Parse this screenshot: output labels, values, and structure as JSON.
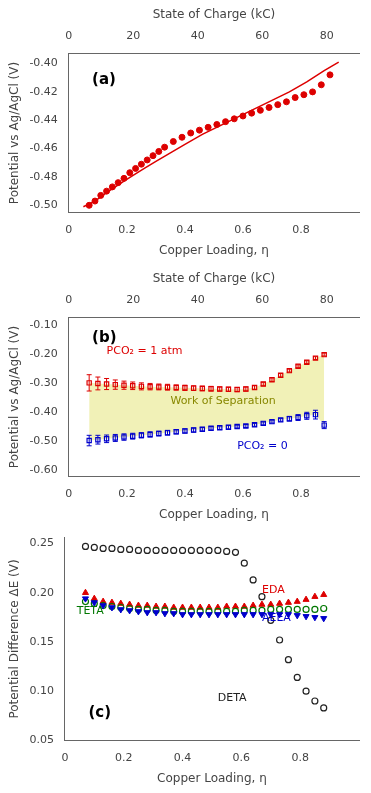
{
  "chart_data": [
    {
      "type": "scatter",
      "xlabel": "Copper Loading, η",
      "ylabel": "Potential vs Ag/AgCl (V)",
      "x2label": "State of Charge (kC)",
      "annotations": [
        {
          "text": "(a)"
        }
      ],
      "xlim": [
        0,
        1.0
      ],
      "xticks": [
        0,
        0.2,
        0.4,
        0.6,
        0.8
      ],
      "ylim": [
        -0.505,
        -0.393
      ],
      "yticks": [
        {
          "value": -0.5,
          "label": "-0.50"
        },
        -0.48,
        -0.46,
        -0.44,
        -0.42,
        {
          "value": -0.4,
          "label": "-0.40"
        }
      ],
      "x2lim": [
        0,
        90
      ],
      "x2ticks": [
        0,
        20,
        40,
        60,
        80
      ],
      "grid": false,
      "series": [
        {
          "type": "line",
          "color": "#dd0000",
          "x": [
            0.05,
            0.07,
            0.09,
            0.11,
            0.13,
            0.16,
            0.19,
            0.22,
            0.26,
            0.3,
            0.35,
            0.4,
            0.46,
            0.52,
            0.58,
            0.64,
            0.7,
            0.76,
            0.82,
            0.88,
            0.93
          ],
          "values": [
            -0.501,
            -0.499,
            -0.497,
            -0.494,
            -0.491,
            -0.487,
            -0.483,
            -0.479,
            -0.474,
            -0.469,
            -0.463,
            -0.457,
            -0.45,
            -0.444,
            -0.438,
            -0.432,
            -0.426,
            -0.42,
            -0.413,
            -0.405,
            -0.399
          ]
        },
        {
          "type": "scatter",
          "color": "#dd0000",
          "marker": "circle",
          "x": [
            0.07,
            0.09,
            0.11,
            0.13,
            0.15,
            0.17,
            0.19,
            0.21,
            0.23,
            0.25,
            0.27,
            0.29,
            0.31,
            0.33,
            0.36,
            0.39,
            0.42,
            0.45,
            0.48,
            0.51,
            0.54,
            0.57,
            0.6,
            0.63,
            0.66,
            0.69,
            0.72,
            0.75,
            0.78,
            0.81,
            0.84,
            0.87,
            0.9
          ],
          "values": [
            -0.5,
            -0.497,
            -0.493,
            -0.49,
            -0.487,
            -0.484,
            -0.481,
            -0.477,
            -0.474,
            -0.471,
            -0.468,
            -0.465,
            -0.462,
            -0.459,
            -0.455,
            -0.452,
            -0.449,
            -0.447,
            -0.445,
            -0.443,
            -0.441,
            -0.439,
            -0.437,
            -0.435,
            -0.433,
            -0.431,
            -0.429,
            -0.427,
            -0.424,
            -0.422,
            -0.42,
            -0.415,
            -0.408
          ]
        }
      ]
    },
    {
      "type": "scatter",
      "xlabel": "Copper Loading, η",
      "ylabel": "Potential vs Ag/AgCl (V)",
      "x2label": "State of Charge (kC)",
      "annotations": [
        {
          "text": "(b)"
        },
        {
          "text": "PCO₂ = 1 atm",
          "color": "#dd0000"
        },
        {
          "text": "Work of Separation",
          "color": "#888800"
        },
        {
          "text": "PCO₂ = 0",
          "color": "#0000cc"
        }
      ],
      "xlim": [
        0,
        1.0
      ],
      "xticks": [
        0,
        0.2,
        0.4,
        0.6,
        0.8
      ],
      "ylim": [
        -0.62,
        -0.075
      ],
      "yticks": [
        {
          "value": -0.6,
          "label": "-0.60"
        },
        {
          "value": -0.5,
          "label": "-0.50"
        },
        {
          "value": -0.4,
          "label": "-0.40"
        },
        {
          "value": -0.3,
          "label": "-0.30"
        },
        {
          "value": -0.2,
          "label": "-0.20"
        },
        {
          "value": -0.1,
          "label": "-0.10"
        }
      ],
      "x2lim": [
        0,
        90
      ],
      "x2ticks": [
        0,
        20,
        40,
        60,
        80
      ],
      "grid": false,
      "series": [
        {
          "type": "band",
          "color": "#eeeeaa",
          "x": [
            0.07,
            0.1,
            0.13,
            0.16,
            0.19,
            0.22,
            0.25,
            0.28,
            0.31,
            0.34,
            0.37,
            0.4,
            0.43,
            0.46,
            0.49,
            0.52,
            0.55,
            0.58,
            0.61,
            0.64,
            0.67,
            0.7,
            0.73,
            0.76,
            0.79,
            0.82,
            0.85,
            0.88
          ],
          "upper": [
            -0.299,
            -0.301,
            -0.303,
            -0.305,
            -0.307,
            -0.309,
            -0.311,
            -0.312,
            -0.313,
            -0.314,
            -0.315,
            -0.316,
            -0.317,
            -0.318,
            -0.319,
            -0.32,
            -0.321,
            -0.322,
            -0.32,
            -0.315,
            -0.303,
            -0.288,
            -0.273,
            -0.257,
            -0.242,
            -0.228,
            -0.214,
            -0.202
          ],
          "lower": [
            -0.497,
            -0.494,
            -0.491,
            -0.488,
            -0.485,
            -0.482,
            -0.479,
            -0.476,
            -0.473,
            -0.47,
            -0.467,
            -0.464,
            -0.461,
            -0.458,
            -0.455,
            -0.453,
            -0.451,
            -0.449,
            -0.447,
            -0.443,
            -0.438,
            -0.432,
            -0.426,
            -0.422,
            -0.418,
            -0.412,
            -0.408,
            -0.444
          ]
        },
        {
          "type": "scatter",
          "color": "#dd0000",
          "marker": "square_open",
          "x": [
            0.07,
            0.1,
            0.13,
            0.16,
            0.19,
            0.22,
            0.25,
            0.28,
            0.31,
            0.34,
            0.37,
            0.4,
            0.43,
            0.46,
            0.49,
            0.52,
            0.55,
            0.58,
            0.61,
            0.64,
            0.67,
            0.7,
            0.73,
            0.76,
            0.79,
            0.82,
            0.85,
            0.88
          ],
          "values": [
            -0.299,
            -0.301,
            -0.303,
            -0.305,
            -0.307,
            -0.309,
            -0.311,
            -0.312,
            -0.313,
            -0.314,
            -0.315,
            -0.316,
            -0.317,
            -0.318,
            -0.319,
            -0.32,
            -0.321,
            -0.322,
            -0.32,
            -0.315,
            -0.303,
            -0.288,
            -0.273,
            -0.257,
            -0.242,
            -0.228,
            -0.214,
            -0.202
          ],
          "error": [
            0.028,
            0.022,
            0.019,
            0.016,
            0.014,
            0.013,
            0.012,
            0.011,
            0.01,
            0.01,
            0.009,
            0.009,
            0.008,
            0.008,
            0.008,
            0.007,
            0.007,
            0.007,
            0.007,
            0.006,
            0.006,
            0.006,
            0.006,
            0.005,
            0.005,
            0.005,
            0.005,
            0.005
          ]
        },
        {
          "type": "scatter",
          "color": "#0000cc",
          "marker": "square_open",
          "x": [
            0.07,
            0.1,
            0.13,
            0.16,
            0.19,
            0.22,
            0.25,
            0.28,
            0.31,
            0.34,
            0.37,
            0.4,
            0.43,
            0.46,
            0.49,
            0.52,
            0.55,
            0.58,
            0.61,
            0.64,
            0.67,
            0.7,
            0.73,
            0.76,
            0.79,
            0.82,
            0.85,
            0.88
          ],
          "values": [
            -0.497,
            -0.494,
            -0.491,
            -0.488,
            -0.485,
            -0.482,
            -0.479,
            -0.476,
            -0.473,
            -0.47,
            -0.467,
            -0.464,
            -0.461,
            -0.458,
            -0.455,
            -0.453,
            -0.451,
            -0.449,
            -0.447,
            -0.443,
            -0.438,
            -0.432,
            -0.426,
            -0.422,
            -0.418,
            -0.412,
            -0.408,
            -0.444
          ],
          "error": [
            0.018,
            0.015,
            0.013,
            0.012,
            0.011,
            0.01,
            0.009,
            0.009,
            0.008,
            0.008,
            0.007,
            0.007,
            0.007,
            0.006,
            0.006,
            0.006,
            0.006,
            0.005,
            0.005,
            0.005,
            0.005,
            0.005,
            0.005,
            0.008,
            0.01,
            0.012,
            0.015,
            0.012
          ]
        }
      ]
    },
    {
      "type": "scatter",
      "xlabel": "Copper Loading, η",
      "ylabel": "Potential Difference ΔE (V)",
      "annotations": [
        {
          "text": "(c)"
        },
        {
          "text": "TETA",
          "color": "#007700"
        },
        {
          "text": "EDA",
          "color": "#dd0000"
        },
        {
          "text": "AEEA",
          "color": "#0000cc"
        },
        {
          "text": "DETA",
          "color": "#222222"
        }
      ],
      "xlim": [
        0,
        1.0
      ],
      "xticks": [
        0,
        0.2,
        0.4,
        0.6,
        0.8
      ],
      "ylim": [
        0.05,
        0.256
      ],
      "yticks": [
        0.05,
        {
          "value": 0.1,
          "label": "0.10"
        },
        0.15,
        {
          "value": 0.2,
          "label": "0.20"
        },
        0.25
      ],
      "grid": false,
      "series": [
        {
          "type": "scatter",
          "color": "#222222",
          "marker": "circle_open",
          "x": [
            0.07,
            0.1,
            0.13,
            0.16,
            0.19,
            0.22,
            0.25,
            0.28,
            0.31,
            0.34,
            0.37,
            0.4,
            0.43,
            0.46,
            0.49,
            0.52,
            0.55,
            0.58,
            0.61,
            0.64,
            0.67,
            0.7,
            0.73,
            0.76,
            0.79,
            0.82,
            0.85,
            0.88
          ],
          "values": [
            0.247,
            0.246,
            0.245,
            0.245,
            0.244,
            0.244,
            0.243,
            0.243,
            0.243,
            0.243,
            0.243,
            0.243,
            0.243,
            0.243,
            0.243,
            0.243,
            0.242,
            0.241,
            0.23,
            0.213,
            0.196,
            0.172,
            0.152,
            0.132,
            0.114,
            0.1,
            0.09,
            0.083
          ]
        },
        {
          "type": "scatter",
          "color": "#dd0000",
          "marker": "triangle",
          "x": [
            0.07,
            0.1,
            0.13,
            0.16,
            0.19,
            0.22,
            0.25,
            0.28,
            0.31,
            0.34,
            0.37,
            0.4,
            0.43,
            0.46,
            0.49,
            0.52,
            0.55,
            0.58,
            0.61,
            0.64,
            0.67,
            0.7,
            0.73,
            0.76,
            0.79,
            0.82,
            0.85,
            0.88
          ],
          "values": [
            0.2,
            0.194,
            0.191,
            0.19,
            0.189,
            0.188,
            0.187,
            0.187,
            0.186,
            0.186,
            0.185,
            0.185,
            0.185,
            0.185,
            0.185,
            0.185,
            0.186,
            0.186,
            0.186,
            0.187,
            0.188,
            0.188,
            0.189,
            0.19,
            0.191,
            0.193,
            0.196,
            0.198
          ]
        },
        {
          "type": "scatter",
          "color": "#007700",
          "marker": "circle_open",
          "x": [
            0.07,
            0.1,
            0.13,
            0.16,
            0.19,
            0.22,
            0.25,
            0.28,
            0.31,
            0.34,
            0.37,
            0.4,
            0.43,
            0.46,
            0.49,
            0.52,
            0.55,
            0.58,
            0.61,
            0.64,
            0.67,
            0.7,
            0.73,
            0.76,
            0.79,
            0.82,
            0.85,
            0.88
          ],
          "values": [
            0.191,
            0.189,
            0.187,
            0.186,
            0.185,
            0.184,
            0.183,
            0.183,
            0.182,
            0.182,
            0.181,
            0.181,
            0.181,
            0.181,
            0.181,
            0.181,
            0.181,
            0.181,
            0.182,
            0.182,
            0.182,
            0.183,
            0.183,
            0.183,
            0.183,
            0.183,
            0.183,
            0.184
          ]
        },
        {
          "type": "scatter",
          "color": "#0000cc",
          "marker": "triangle_down",
          "x": [
            0.07,
            0.1,
            0.13,
            0.16,
            0.19,
            0.22,
            0.25,
            0.28,
            0.31,
            0.34,
            0.37,
            0.4,
            0.43,
            0.46,
            0.49,
            0.52,
            0.55,
            0.58,
            0.61,
            0.64,
            0.67,
            0.7,
            0.73,
            0.76,
            0.79,
            0.82,
            0.85,
            0.88
          ],
          "values": [
            0.194,
            0.19,
            0.187,
            0.185,
            0.183,
            0.182,
            0.181,
            0.18,
            0.18,
            0.179,
            0.179,
            0.178,
            0.178,
            0.178,
            0.178,
            0.178,
            0.178,
            0.178,
            0.178,
            0.178,
            0.178,
            0.178,
            0.178,
            0.178,
            0.177,
            0.176,
            0.175,
            0.174
          ]
        }
      ]
    }
  ]
}
